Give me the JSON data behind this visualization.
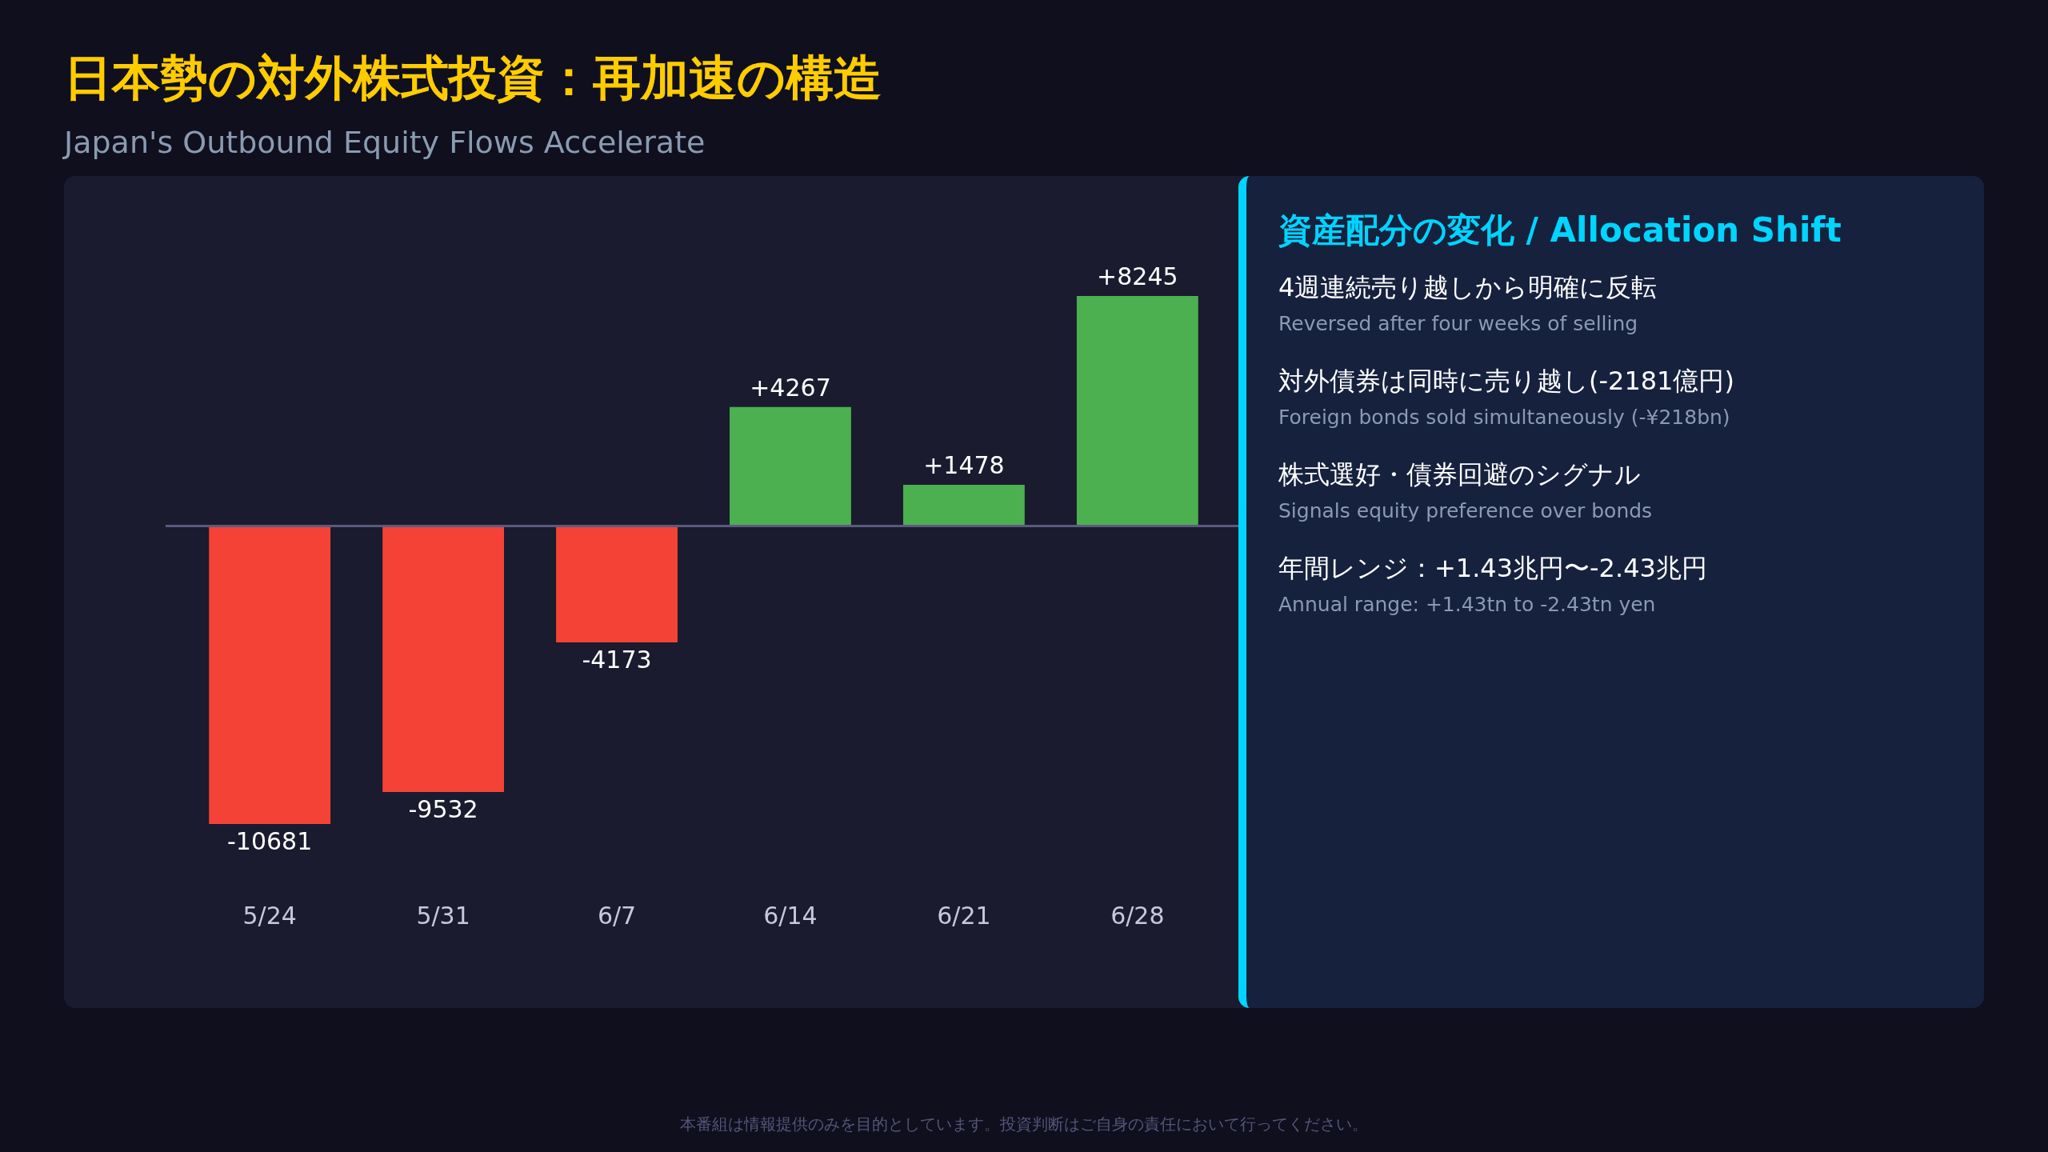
{
  "chart_data": [
    {
      "type": "bar",
      "title": "日本勢の対外株式投資：再加速の構造",
      "subtitle": "Japan's Outbound Equity Flows Accelerate",
      "categories": [
        "5/24",
        "5/31",
        "6/7",
        "6/14",
        "6/21",
        "6/28"
      ],
      "values": [
        -10681,
        -9532,
        -4173,
        4267,
        1478,
        8245
      ],
      "colors": [
        "#f44336",
        "#f44336",
        "#f44336",
        "#4caf50",
        "#4caf50",
        "#4caf50"
      ],
      "value_labels": [
        "-10681",
        "-9532",
        "-4173",
        "+4267",
        "+1478",
        "+8245"
      ],
      "ref_lines": [
        {
          "axis": "y",
          "value": 0,
          "color": "#5a5a7e"
        }
      ],
      "annotations": [
        "本番組は情報提供のみを目的としています。投資判断はご自身の責任において行ってください。"
      ]
    },
    {
      "type": "other",
      "title": "資産配分の変化 / Allocation Shift",
      "annotations": [
        "4週連続売り越しから明確に反転",
        "Reversed after four weeks of selling",
        "対外債券は同時に売り越し(-2181億円)",
        "Foreign bonds sold simultaneously (-¥218bn)",
        "株式選好・債券回避のシグナル",
        "Signals equity preference over bonds",
        "年間レンジ：+1.43兆円〜-2.43兆円",
        "Annual range: +1.43tn to -2.43tn yen"
      ]
    }
  ]
}
